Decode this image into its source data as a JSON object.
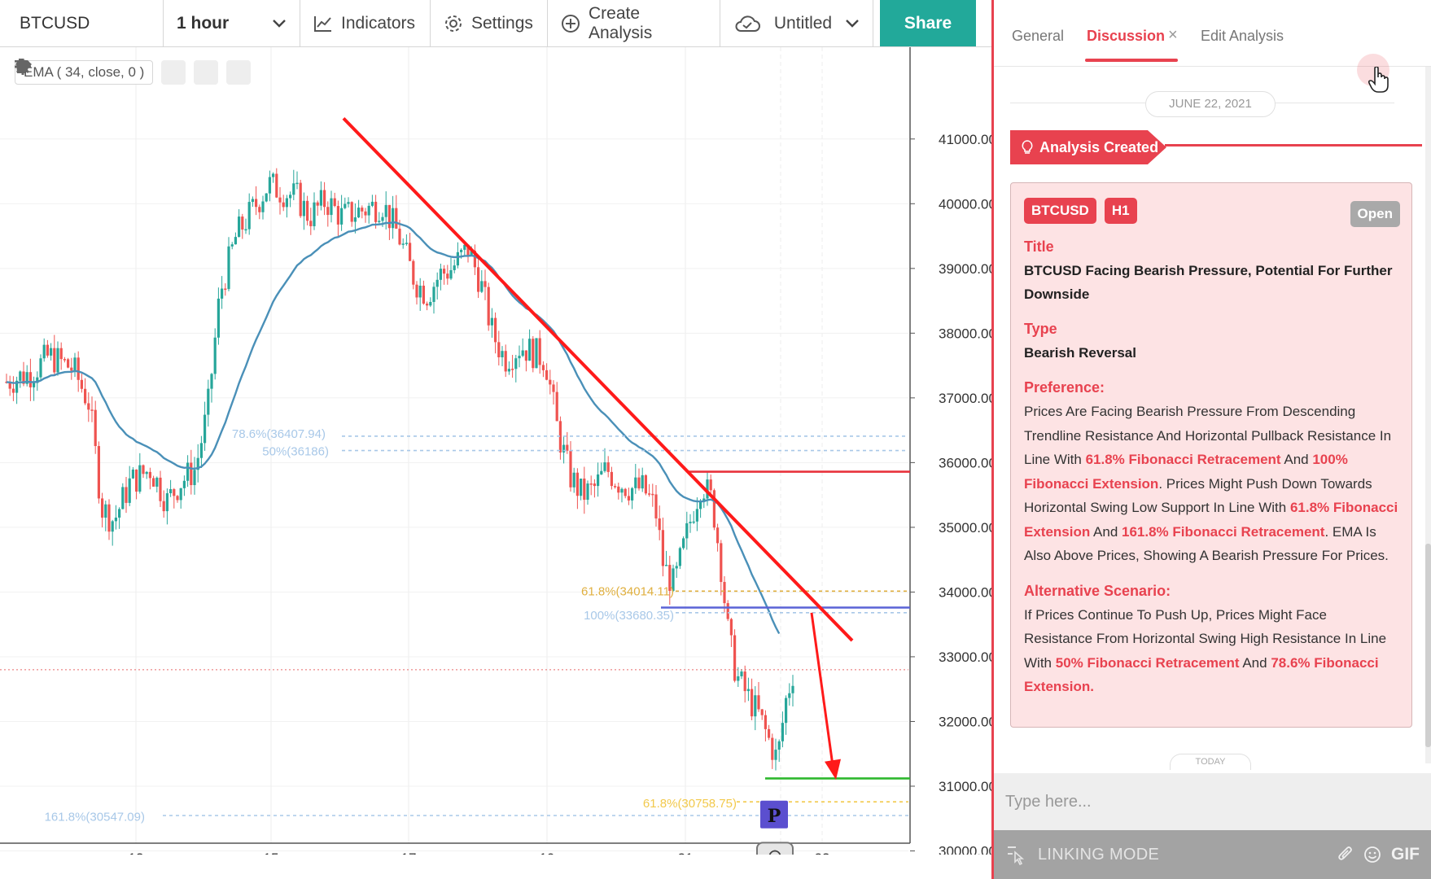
{
  "toolbar": {
    "symbol": "BTCUSD",
    "interval": "1 hour",
    "indicators": "Indicators",
    "settings": "Settings",
    "create_analysis": "Create Analysis",
    "layout_name": "Untitled",
    "share": "Share"
  },
  "chart": {
    "ema_label": "EMA ( 34, close, 0 )",
    "icons": [
      "eye-icon",
      "gear-icon",
      "trash-icon"
    ],
    "colors": {
      "up": "#26a69a",
      "down": "#ef5350",
      "ema": "#4a90b8",
      "trendline": "#ff1a1a",
      "resistance": "#e8323c",
      "pullback": "#5a63d6",
      "support": "#2eb82e",
      "fib_blue": "#a8c8e8",
      "fib_orange": "#e0b040",
      "fib_yellow": "#f2c94c"
    },
    "y_axis": [
      "41000.00",
      "40000.00",
      "39000.00",
      "38000.00",
      "37000.00",
      "36000.00",
      "35000.00",
      "34000.00",
      "33000.00",
      "32000.00",
      "31000.00",
      "30000.00"
    ],
    "y_range": [
      29500,
      41400
    ],
    "x_axis": [
      "13",
      "15",
      "17",
      "19",
      "21",
      "22",
      "23"
    ],
    "fib_labels": {
      "fib786": "78.6%(36407.94)",
      "fib50": "50%(36186)",
      "fib618a": "61.8%(34014.11)",
      "fib100": "100%(33680.35)",
      "fib618b": "61.8%(30758.75)",
      "fib1618": "161.8%(30547.09)"
    },
    "levels": {
      "resistance": 35860,
      "pullback": 33760,
      "support": 31120,
      "fib786": 36407.94,
      "fib50": 36186,
      "fib618a": 34014.11,
      "fib100": 33680.35,
      "fib618b": 30758.75,
      "fib1618": 30547.09,
      "last_price": 32800
    },
    "p_marker": "P",
    "idea_icon": "lightbulb-icon"
  },
  "panel": {
    "tabs": [
      "General",
      "Discussion",
      "Edit Analysis"
    ],
    "close": "×",
    "date": "JUNE 22, 2021",
    "created": "Analysis Created",
    "card": {
      "symbol": "BTCUSD",
      "timeframe": "H1",
      "status": "Open",
      "title_label": "Title",
      "title": "BTCUSD Facing Bearish Pressure, Potential For Further Downside",
      "type_label": "Type",
      "type": "Bearish Reversal",
      "pref_label": "Preference:",
      "pref": {
        "t1": "Prices Are Facing Bearish Pressure From Descending Trendline Resistance And Horizontal Pullback Resistance In Line With ",
        "h1": "61.8% Fibonacci Retracement",
        "t2": " And ",
        "h2": "100% Fibonacci Extension",
        "t3": ". Prices Might Push Down Towards Horizontal Swing Low Support In Line With ",
        "h3": "61.8% Fibonacci Extension",
        "t4": " And ",
        "h4": "161.8% Fibonacci Retracement",
        "t5": ". EMA Is Also Above Prices, Showing A Bearish Pressure For Prices."
      },
      "alt_label": "Alternative Scenario:",
      "alt": {
        "t1": "If Prices Continue To Push Up, Prices Might Face Resistance From Horizontal Swing High Resistance In Line With ",
        "h1": "50% Fibonacci Retracement",
        "t2": " And ",
        "h2": "78.6% Fibonacci Extension."
      }
    },
    "today": "TODAY",
    "input_placeholder": "Type here...",
    "linking_mode": "LINKING MODE",
    "gif": "GIF"
  }
}
